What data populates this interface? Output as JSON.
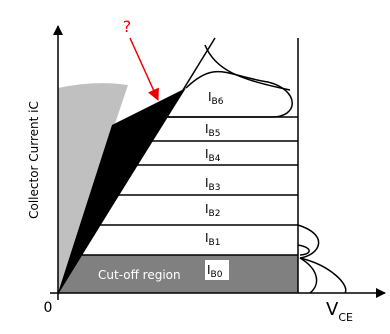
{
  "annotation": "?",
  "y_axis_label": "Collector Current iC",
  "origin": "0",
  "x_axis_label": {
    "main": "V",
    "sub": "CE"
  },
  "region": "Cut-off region",
  "curves": [
    {
      "label": "I",
      "sub": "B6"
    },
    {
      "label": "I",
      "sub": "B5"
    },
    {
      "label": "I",
      "sub": "B4"
    },
    {
      "label": "I",
      "sub": "B3"
    },
    {
      "label": "I",
      "sub": "B2"
    },
    {
      "label": "I",
      "sub": "B1"
    },
    {
      "label": "I",
      "sub": "B0"
    }
  ]
}
